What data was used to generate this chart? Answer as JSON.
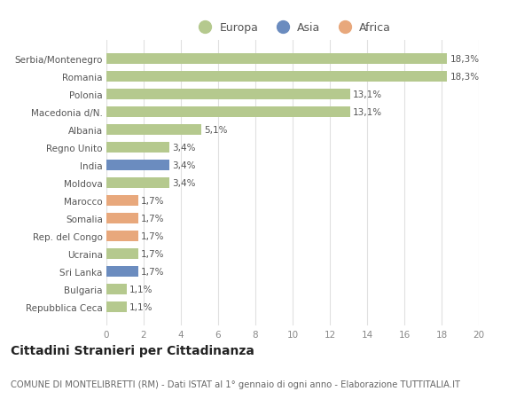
{
  "categories": [
    "Serbia/Montenegro",
    "Romania",
    "Polonia",
    "Macedonia d/N.",
    "Albania",
    "Regno Unito",
    "India",
    "Moldova",
    "Marocco",
    "Somalia",
    "Rep. del Congo",
    "Ucraina",
    "Sri Lanka",
    "Bulgaria",
    "Repubblica Ceca"
  ],
  "values": [
    18.3,
    18.3,
    13.1,
    13.1,
    5.1,
    3.4,
    3.4,
    3.4,
    1.7,
    1.7,
    1.7,
    1.7,
    1.7,
    1.1,
    1.1
  ],
  "labels": [
    "18,3%",
    "18,3%",
    "13,1%",
    "13,1%",
    "5,1%",
    "3,4%",
    "3,4%",
    "3,4%",
    "1,7%",
    "1,7%",
    "1,7%",
    "1,7%",
    "1,7%",
    "1,1%",
    "1,1%"
  ],
  "continents": [
    "Europa",
    "Europa",
    "Europa",
    "Europa",
    "Europa",
    "Europa",
    "Asia",
    "Europa",
    "Africa",
    "Africa",
    "Africa",
    "Europa",
    "Asia",
    "Europa",
    "Europa"
  ],
  "colors": {
    "Europa": "#b5c98e",
    "Asia": "#6b8cbf",
    "Africa": "#e8a87c"
  },
  "xlim": [
    0,
    20
  ],
  "xticks": [
    0,
    2,
    4,
    6,
    8,
    10,
    12,
    14,
    16,
    18,
    20
  ],
  "background_color": "#ffffff",
  "grid_color": "#e0e0e0",
  "title": "Cittadini Stranieri per Cittadinanza",
  "subtitle": "COMUNE DI MONTELIBRETTI (RM) - Dati ISTAT al 1° gennaio di ogni anno - Elaborazione TUTTITALIA.IT",
  "bar_height": 0.6,
  "label_fontsize": 7.5,
  "tick_fontsize": 7.5,
  "title_fontsize": 10,
  "subtitle_fontsize": 7.2,
  "legend_fontsize": 9
}
